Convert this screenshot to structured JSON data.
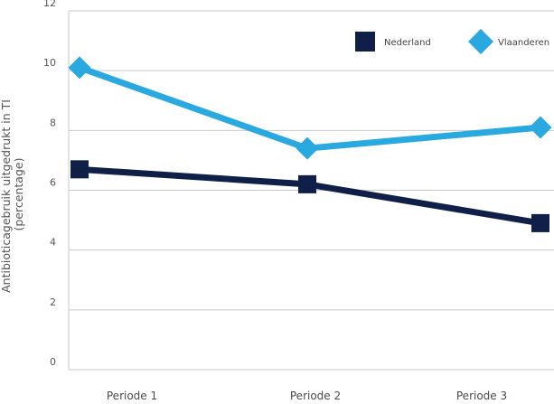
{
  "chart_data": {
    "type": "line",
    "categories": [
      "Periode 1",
      "Periode 2",
      "Periode 3"
    ],
    "series": [
      {
        "name": "Nederland",
        "values": [
          6.7,
          6.2,
          4.9
        ],
        "color": "#0f1f48",
        "marker": "square"
      },
      {
        "name": "Vlaanderen",
        "values": [
          10.1,
          7.4,
          8.1
        ],
        "color": "#2aa8e0",
        "marker": "diamond"
      }
    ],
    "ylabel_lines": [
      "Antibioticagebruik uitgedrukt in TI",
      "(percentage)"
    ],
    "ylim": [
      0,
      12
    ],
    "yticks": [
      0,
      2,
      4,
      6,
      8,
      10,
      12
    ],
    "grid": true,
    "legend_position": "top-right"
  }
}
